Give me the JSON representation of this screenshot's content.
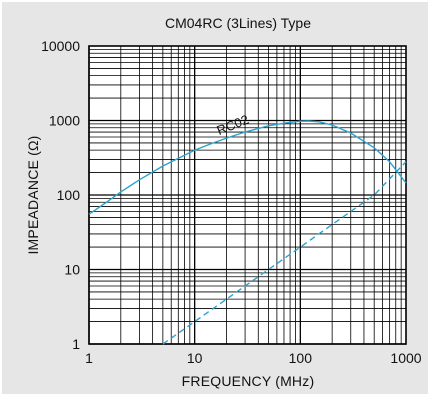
{
  "chart_data": {
    "type": "line",
    "title": "CM04RC  (3Lines) Type",
    "xlabel": "FREQUENCY  (MHz)",
    "ylabel": "IMPEADANCE  (Ω)",
    "x_scale": "log",
    "y_scale": "log",
    "xlim": [
      1,
      1000
    ],
    "ylim": [
      1,
      10000
    ],
    "x_ticks": [
      "1",
      "10",
      "100",
      "1000"
    ],
    "y_ticks": [
      "1",
      "10",
      "100",
      "1000",
      "10000"
    ],
    "grid": true,
    "colors": {
      "curve": "#2ba3cf",
      "background": "#e6e6e6",
      "grid": "#000000"
    },
    "series": [
      {
        "name": "RC02",
        "style": "solid",
        "x": [
          1,
          1.5,
          2,
          3,
          5,
          7,
          10,
          15,
          20,
          30,
          50,
          70,
          100,
          120,
          150,
          200,
          300,
          500,
          700,
          1000
        ],
        "y": [
          55,
          82,
          110,
          160,
          245,
          310,
          400,
          500,
          580,
          700,
          850,
          920,
          980,
          985,
          960,
          870,
          680,
          430,
          280,
          145
        ]
      },
      {
        "name": "",
        "style": "dashed",
        "x": [
          5,
          10,
          20,
          50,
          100,
          200,
          500,
          1000
        ],
        "y": [
          1,
          2,
          4,
          10,
          20,
          40,
          100,
          280
        ]
      }
    ]
  }
}
